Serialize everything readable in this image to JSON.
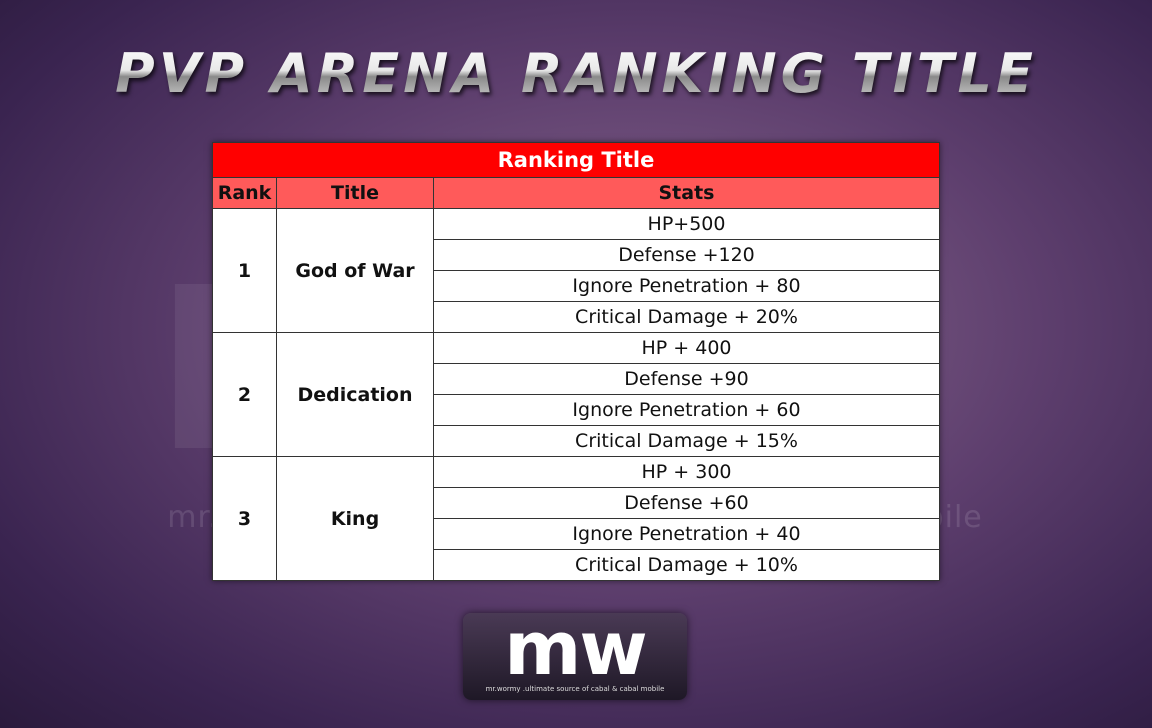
{
  "header": {
    "title": "PVP ARENA RANKING TITLE"
  },
  "table": {
    "caption": "Ranking Title",
    "columns": [
      "Rank",
      "Title",
      "Stats"
    ],
    "rows": [
      {
        "rank": 1,
        "title": "God of War",
        "stats": [
          "HP+500",
          "Defense +120",
          "Ignore Penetration + 80",
          "Critical Damage + 20%"
        ]
      },
      {
        "rank": 2,
        "title": "Dedication",
        "stats": [
          "HP + 400",
          "Defense +90",
          "Ignore Penetration + 60",
          "Critical Damage + 15%"
        ]
      },
      {
        "rank": 3,
        "title": "King",
        "stats": [
          "HP + 300",
          "Defense +60",
          "Ignore Penetration + 40",
          "Critical Damage + 10%"
        ]
      }
    ]
  },
  "logo": {
    "mark": "mw",
    "tagline": "mr.wormy .ultimate source of cabal & cabal mobile"
  }
}
